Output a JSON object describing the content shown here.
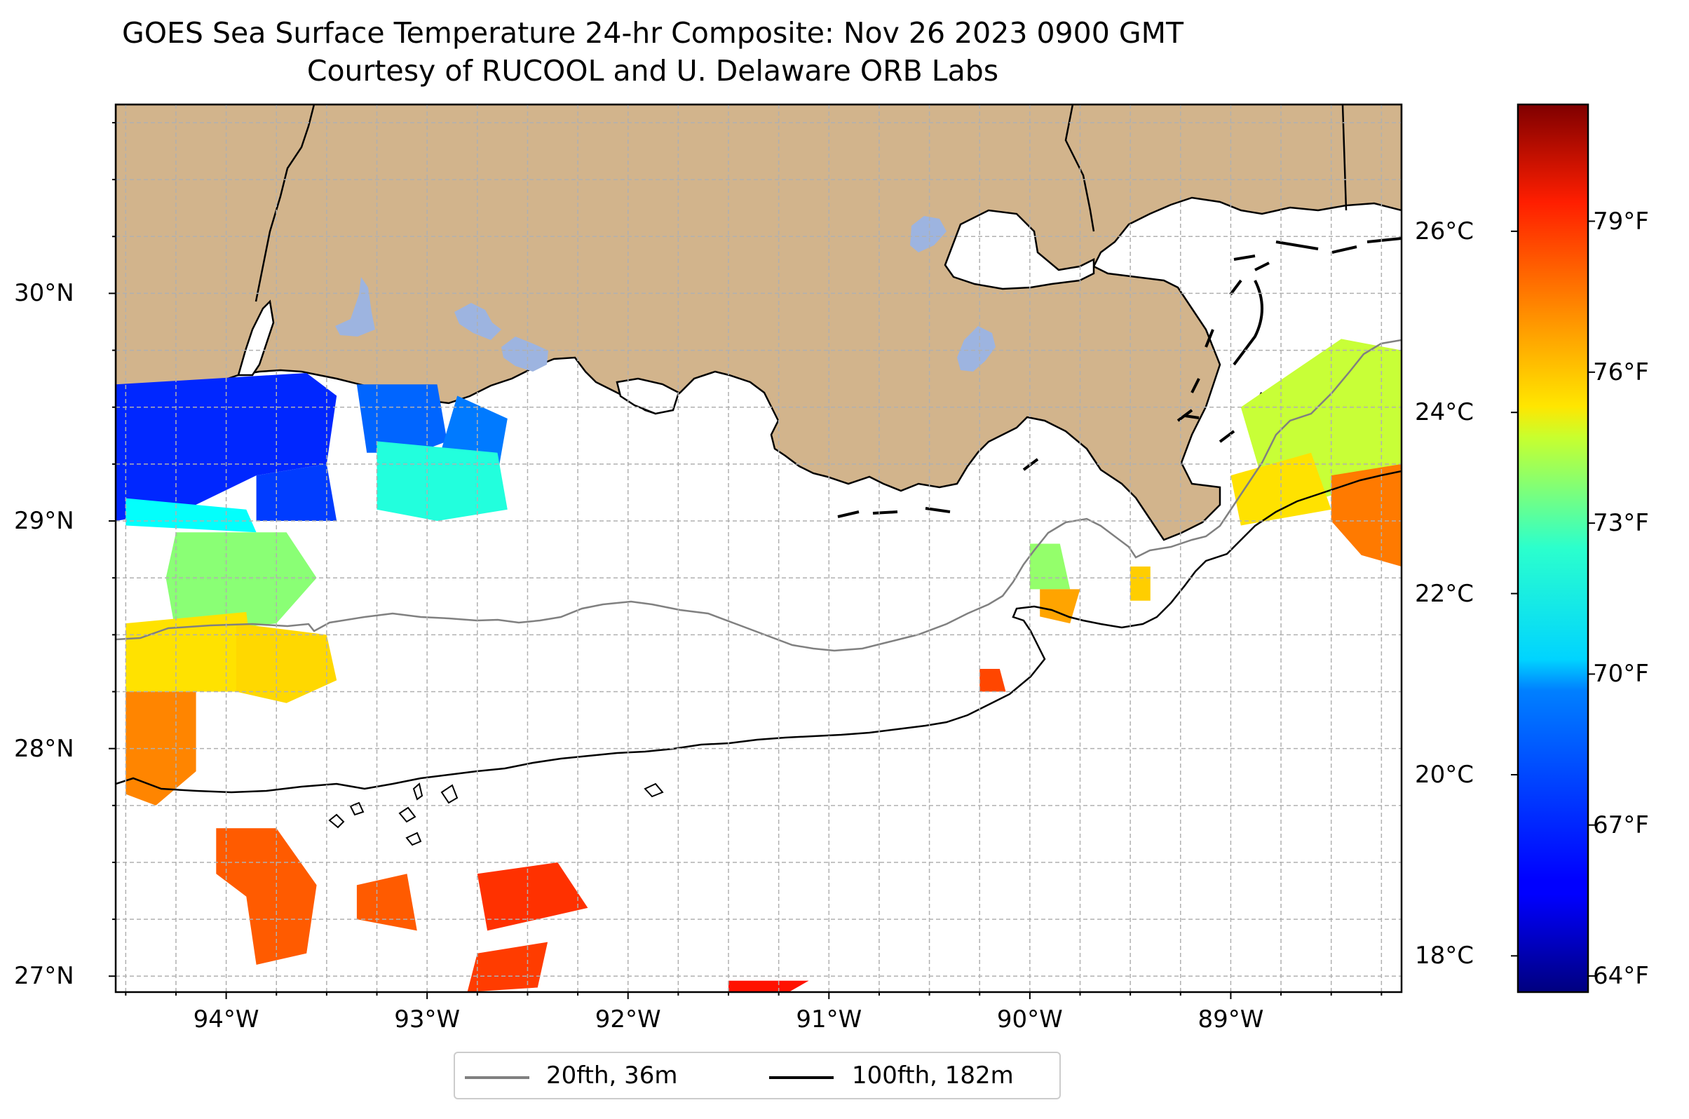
{
  "title": "GOES Sea Surface Temperature 24-hr Composite: Nov 26 2023 0900 GMT",
  "subtitle": "Courtesy of RUCOOL and U. Delaware ORB Labs",
  "map": {
    "extent": {
      "lon_min": -94.55,
      "lon_max": -88.15,
      "lat_min": 26.93,
      "lat_max": 30.83
    },
    "colors": {
      "land": "#d2b48c",
      "lakes": "#9db4e0",
      "water": "#ffffff",
      "coast": "#000000",
      "grid": "#b0b0b0",
      "iso20": "#808080",
      "iso100": "#000000"
    },
    "lon_ticks": [
      {
        "value": -94,
        "label": "94°W"
      },
      {
        "value": -93,
        "label": "93°W"
      },
      {
        "value": -92,
        "label": "92°W"
      },
      {
        "value": -91,
        "label": "91°W"
      },
      {
        "value": -90,
        "label": "90°W"
      },
      {
        "value": -89,
        "label": "89°W"
      }
    ],
    "lat_ticks": [
      {
        "value": 30,
        "label": "30°N"
      },
      {
        "value": 29,
        "label": "29°N"
      },
      {
        "value": 28,
        "label": "28°N"
      },
      {
        "value": 27,
        "label": "27°N"
      }
    ]
  },
  "colorbar": {
    "cmap": "jet",
    "celsius_range": [
      17.6,
      27.4
    ],
    "celsius_ticks": [
      {
        "value": 18,
        "label": "18°C"
      },
      {
        "value": 20,
        "label": "20°C"
      },
      {
        "value": 22,
        "label": "22°C"
      },
      {
        "value": 24,
        "label": "24°C"
      },
      {
        "value": 26,
        "label": "26°C"
      }
    ],
    "fahrenheit_ticks": [
      {
        "value": 64,
        "label": "64°F"
      },
      {
        "value": 67,
        "label": "67°F"
      },
      {
        "value": 70,
        "label": "70°F"
      },
      {
        "value": 73,
        "label": "73°F"
      },
      {
        "value": 76,
        "label": "76°F"
      },
      {
        "value": 79,
        "label": "79°F"
      }
    ]
  },
  "legend": {
    "placement": "bottom-center",
    "items": [
      {
        "label": "20fth, 36m",
        "color": "#808080"
      },
      {
        "label": "100fth, 182m",
        "color": "#000000"
      }
    ]
  },
  "sst_patches": [
    {
      "lon": -94.3,
      "lat": 29.35,
      "temp_c": 19.2
    },
    {
      "lon": -93.9,
      "lat": 29.45,
      "temp_c": 19.4
    },
    {
      "lon": -93.1,
      "lat": 29.4,
      "temp_c": 19.8
    },
    {
      "lon": -92.75,
      "lat": 29.35,
      "temp_c": 20.0
    },
    {
      "lon": -92.95,
      "lat": 29.1,
      "temp_c": 21.6
    },
    {
      "lon": -94.3,
      "lat": 29.1,
      "temp_c": 21.3
    },
    {
      "lon": -93.9,
      "lat": 28.75,
      "temp_c": 22.6
    },
    {
      "lon": -94.1,
      "lat": 28.35,
      "temp_c": 24.0
    },
    {
      "lon": -93.75,
      "lat": 28.4,
      "temp_c": 24.1
    },
    {
      "lon": -94.35,
      "lat": 28.0,
      "temp_c": 24.9
    },
    {
      "lon": -93.8,
      "lat": 27.35,
      "temp_c": 25.3
    },
    {
      "lon": -93.2,
      "lat": 27.3,
      "temp_c": 25.3
    },
    {
      "lon": -92.45,
      "lat": 27.35,
      "temp_c": 25.7
    },
    {
      "lon": -92.6,
      "lat": 27.05,
      "temp_c": 25.6
    },
    {
      "lon": -91.3,
      "lat": 26.96,
      "temp_c": 26.0
    },
    {
      "lon": -90.1,
      "lat": 28.3,
      "temp_c": 25.5
    },
    {
      "lon": -89.9,
      "lat": 28.8,
      "temp_c": 22.7
    },
    {
      "lon": -89.85,
      "lat": 28.65,
      "temp_c": 24.6
    },
    {
      "lon": -89.45,
      "lat": 28.7,
      "temp_c": 24.2
    },
    {
      "lon": -88.6,
      "lat": 29.55,
      "temp_c": 23.2
    },
    {
      "lon": -88.7,
      "lat": 29.15,
      "temp_c": 24.0
    },
    {
      "lon": -88.25,
      "lat": 28.95,
      "temp_c": 25.0
    }
  ]
}
